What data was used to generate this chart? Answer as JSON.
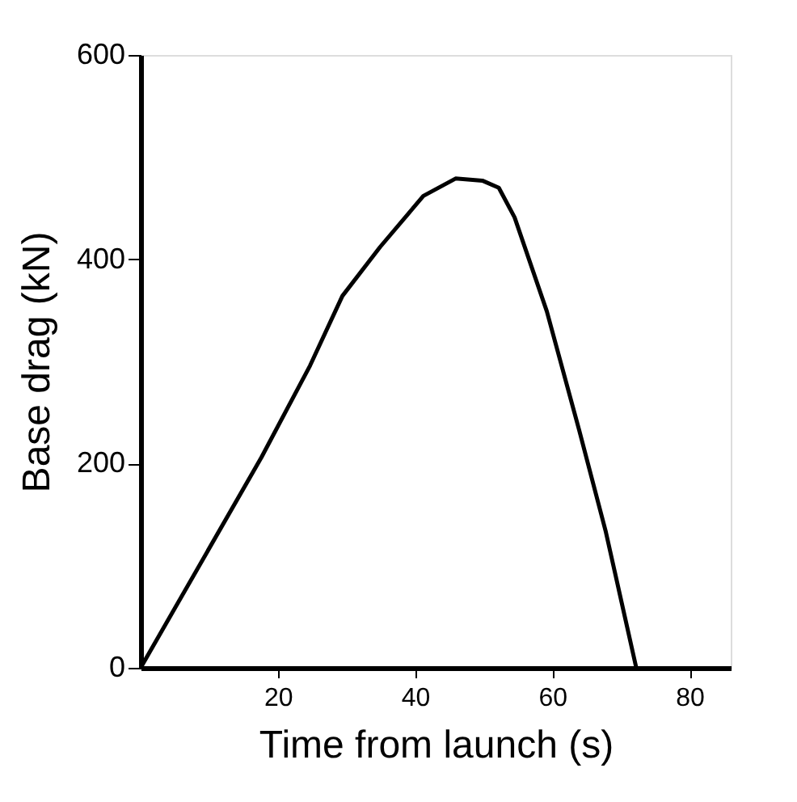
{
  "chart_data": {
    "type": "line",
    "xlabel": "Time from launch (s)",
    "ylabel": "Base drag (kN)",
    "x": [
      0,
      17.6,
      24.7,
      29.4,
      34.9,
      41.2,
      45.9,
      49.8,
      52.2,
      54.5,
      59.2,
      63.9,
      67.8,
      72.2
    ],
    "series": [
      {
        "color": "#000000",
        "values": [
          0,
          206,
          296,
          364,
          412,
          462,
          479,
          477,
          470,
          441,
          349,
          233,
          133,
          1
        ]
      }
    ],
    "xlim": [
      0,
      86
    ],
    "ylim": [
      0,
      600
    ],
    "xticks": [
      20,
      40,
      60,
      80
    ],
    "yticks": [
      0,
      200,
      400,
      600
    ],
    "grid": false,
    "marker": "none",
    "line_style": "solid"
  }
}
